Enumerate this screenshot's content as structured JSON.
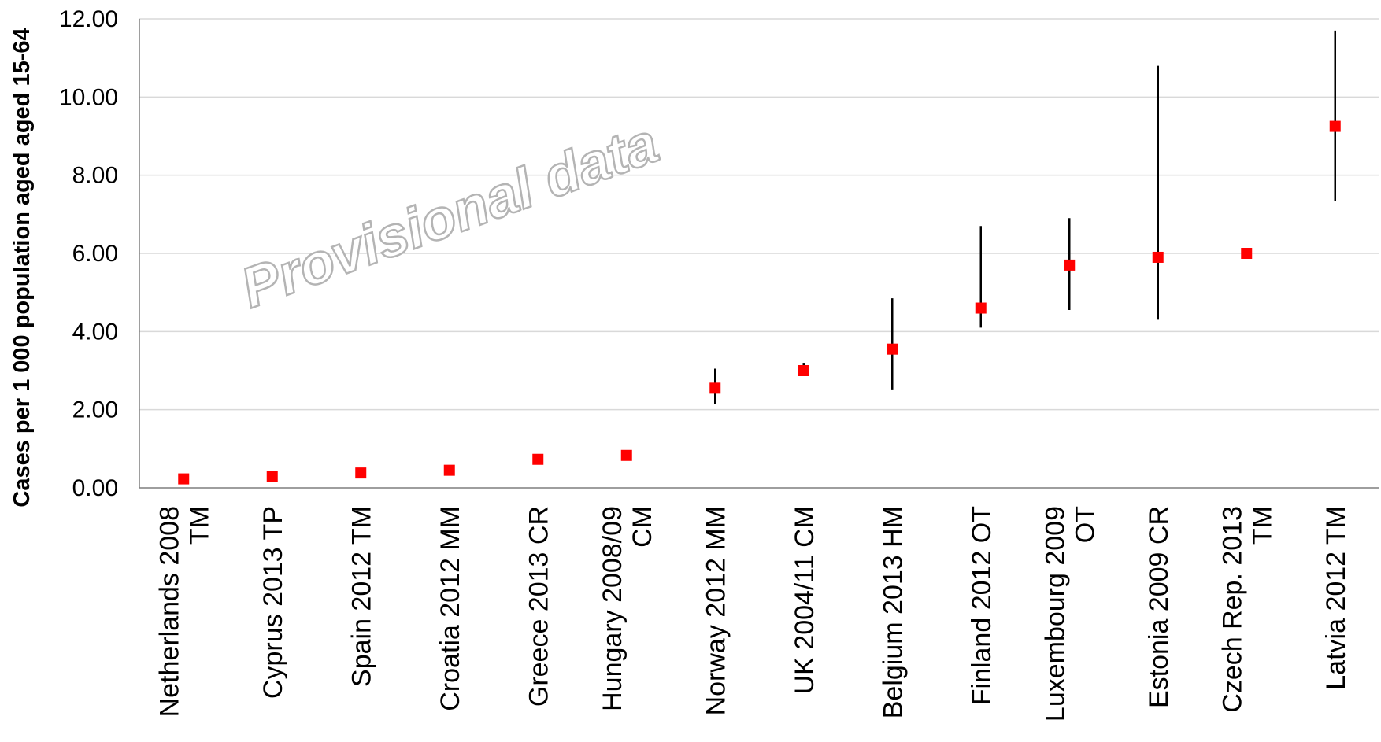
{
  "chart_data": {
    "type": "scatter",
    "ylabel": "Cases per 1 000 population  aged  aged  15-64",
    "ylim": [
      0,
      12
    ],
    "yticks": [
      "0.00",
      "2.00",
      "4.00",
      "6.00",
      "8.00",
      "10.00",
      "12.00"
    ],
    "grid": true,
    "watermark": "Provisional data",
    "colors": {
      "marker": "#ff0000",
      "error_bar": "#000000",
      "grid": "#d9d9d9"
    },
    "categories": [
      [
        "Netherlands 2008",
        "TM"
      ],
      [
        "Cyprus 2013 TP"
      ],
      [
        "Spain 2012 TM"
      ],
      [
        "Croatia 2012 MM"
      ],
      [
        "Greece 2013 CR"
      ],
      [
        "Hungary 2008/09",
        "CM"
      ],
      [
        "Norway 2012 MM"
      ],
      [
        "UK 2004/11 CM"
      ],
      [
        "Belgium 2013 HM"
      ],
      [
        "Finland 2012 OT"
      ],
      [
        "Luxembourg 2009",
        "OT"
      ],
      [
        "Estonia 2009 CR"
      ],
      [
        "Czech Rep. 2013",
        "TM"
      ],
      [
        "Latvia 2012 TM"
      ]
    ],
    "values": [
      0.23,
      0.3,
      0.38,
      0.45,
      0.73,
      0.83,
      2.55,
      3.0,
      3.55,
      4.6,
      5.7,
      5.9,
      6.0,
      9.25
    ],
    "error_low": [
      null,
      0.25,
      null,
      0.4,
      null,
      null,
      2.15,
      2.9,
      2.5,
      4.1,
      4.55,
      4.3,
      null,
      7.35
    ],
    "error_high": [
      null,
      0.4,
      null,
      0.55,
      null,
      null,
      3.05,
      3.2,
      4.85,
      6.7,
      6.9,
      10.8,
      null,
      11.7
    ]
  }
}
